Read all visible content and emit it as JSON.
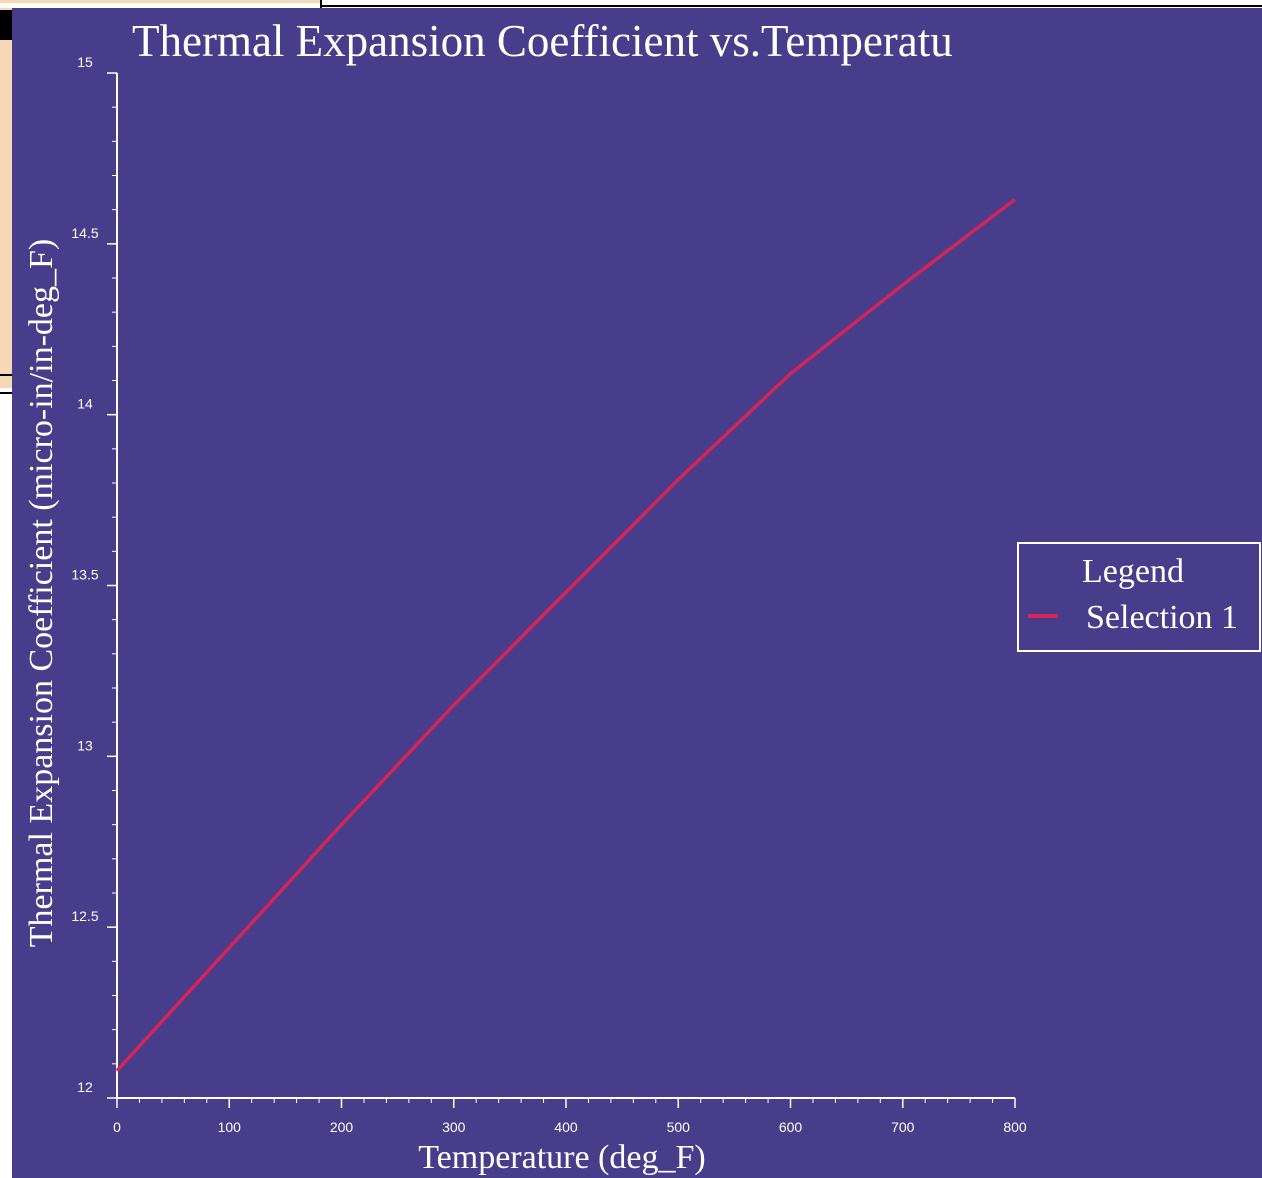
{
  "colors": {
    "plot_background": "#473d8a",
    "axis": "#ffffff",
    "series_line": "#d4245a",
    "text": "#ffffff"
  },
  "chart_data": {
    "type": "line",
    "title": "Thermal Expansion Coefficient vs.Temperatu",
    "xlabel": "Temperature (deg_F)",
    "ylabel": "Thermal Expansion Coefficient (micro-in/in-deg_F)",
    "xlim": [
      0,
      800
    ],
    "ylim": [
      12,
      15
    ],
    "x_ticks": [
      "0",
      "100",
      "200",
      "300",
      "400",
      "500",
      "600",
      "700",
      "800"
    ],
    "y_ticks": [
      "12",
      "12.5",
      "13",
      "13.5",
      "14",
      "14.5",
      "15"
    ],
    "legend": {
      "title": "Legend",
      "placement": "right"
    },
    "series": [
      {
        "name": "Selection 1",
        "x": [
          0,
          100,
          200,
          300,
          400,
          500,
          600,
          700,
          800
        ],
        "y": [
          12.08,
          12.44,
          12.8,
          13.15,
          13.48,
          13.81,
          14.12,
          14.38,
          14.63
        ]
      }
    ]
  }
}
